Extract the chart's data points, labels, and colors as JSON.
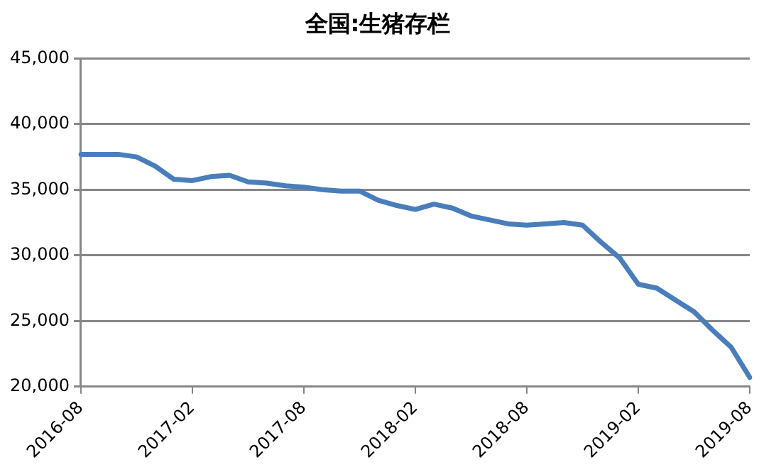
{
  "chart_data": {
    "type": "line",
    "title": "全国:生猪存栏",
    "categories": [
      "2016-08",
      null,
      null,
      null,
      null,
      null,
      "2017-02",
      null,
      null,
      null,
      null,
      null,
      "2017-08",
      null,
      null,
      null,
      null,
      null,
      "2018-02",
      null,
      null,
      null,
      null,
      null,
      "2018-08",
      null,
      null,
      null,
      null,
      null,
      "2019-02",
      null,
      null,
      null,
      null,
      null,
      "2019-08"
    ],
    "series": [
      {
        "color": "#4a7ebb",
        "values": [
          37700,
          37700,
          37700,
          37500,
          36800,
          35800,
          35700,
          36000,
          36100,
          35600,
          35500,
          35300,
          35200,
          35000,
          34900,
          34900,
          34200,
          33800,
          33500,
          33900,
          33600,
          33000,
          32700,
          32400,
          32300,
          32400,
          32500,
          32300,
          31000,
          29800,
          27800,
          27500,
          26600,
          25700,
          24300,
          23000,
          20700
        ]
      }
    ],
    "ylim": [
      20000,
      45000
    ],
    "yticks": [
      {
        "value": 20000,
        "label": "20,000"
      },
      {
        "value": 25000,
        "label": "25,000"
      },
      {
        "value": 30000,
        "label": "30,000"
      },
      {
        "value": 35000,
        "label": "35,000"
      },
      {
        "value": 40000,
        "label": "40,000"
      },
      {
        "value": 45000,
        "label": "45,000"
      }
    ],
    "grid": "y",
    "legend": false,
    "marker": "none",
    "line_style": "solid"
  }
}
